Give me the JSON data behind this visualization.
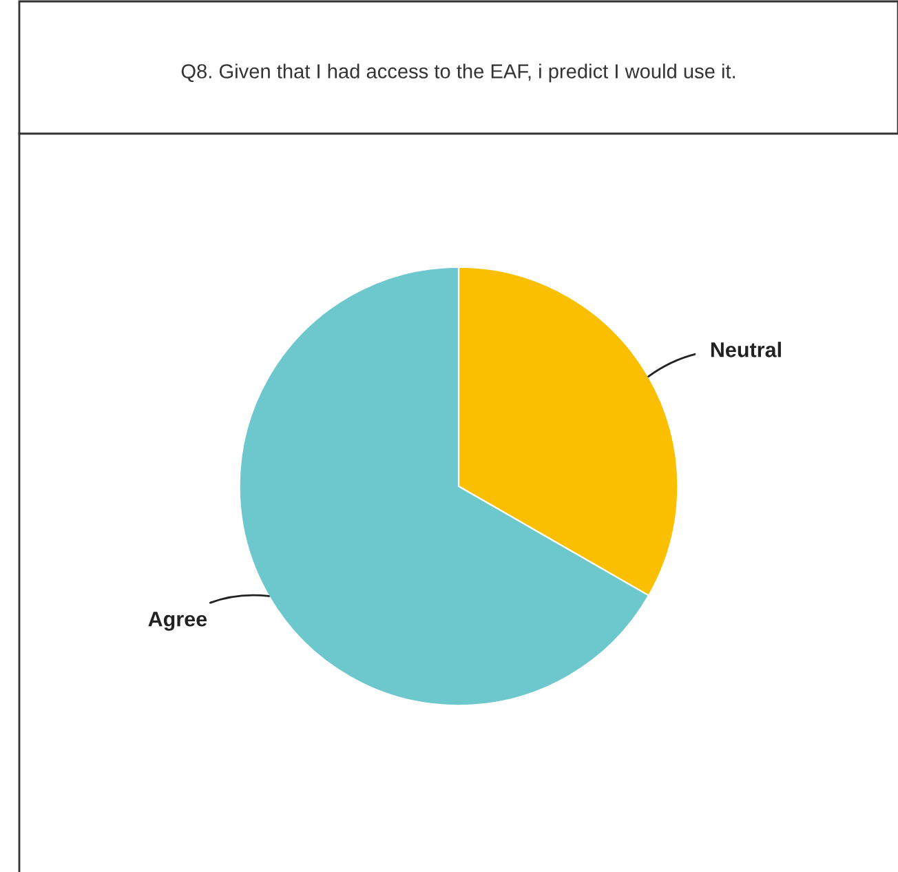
{
  "chart_data": {
    "type": "pie",
    "title": "Q8. Given that I had access to the EAF, i predict I would use it.",
    "categories": [
      "Neutral",
      "Agree"
    ],
    "values": [
      33.3,
      66.7
    ],
    "colors": [
      "#f9bf00",
      "#6cc8cc"
    ]
  }
}
